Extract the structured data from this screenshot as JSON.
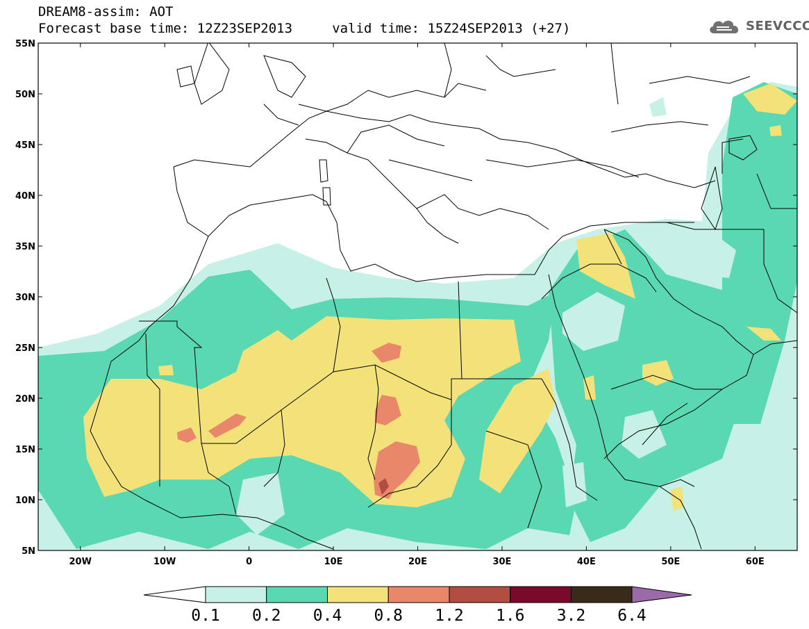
{
  "header": {
    "title_line1": "DREAM8-assim: AOT",
    "title_line2": "Forecast base time: 12Z23SEP2013     valid time: 15Z24SEP2013 (+27)"
  },
  "logo": {
    "text": "SEEVCCC",
    "icon": "cloud-icon"
  },
  "map": {
    "lon_range": [
      -25,
      65
    ],
    "lat_range": [
      5,
      55
    ],
    "lon_ticks": [
      "20W",
      "10W",
      "0",
      "10E",
      "20E",
      "30E",
      "40E",
      "50E",
      "60E"
    ],
    "lat_ticks": [
      "55N",
      "50N",
      "45N",
      "40N",
      "35N",
      "30N",
      "25N",
      "20N",
      "15N",
      "10N",
      "5N"
    ]
  },
  "colorbar": {
    "labels": [
      "0.1",
      "0.2",
      "0.4",
      "0.8",
      "1.2",
      "1.6",
      "3.2",
      "6.4"
    ],
    "colors": {
      "c1": "#c7f0e6",
      "c2": "#5ad8b2",
      "c3": "#f3e27a",
      "c4": "#e9876a",
      "c5": "#b24d44",
      "c6": "#7a0a2a",
      "c7": "#3a2a1a",
      "c8": "#9a6aaa"
    }
  }
}
